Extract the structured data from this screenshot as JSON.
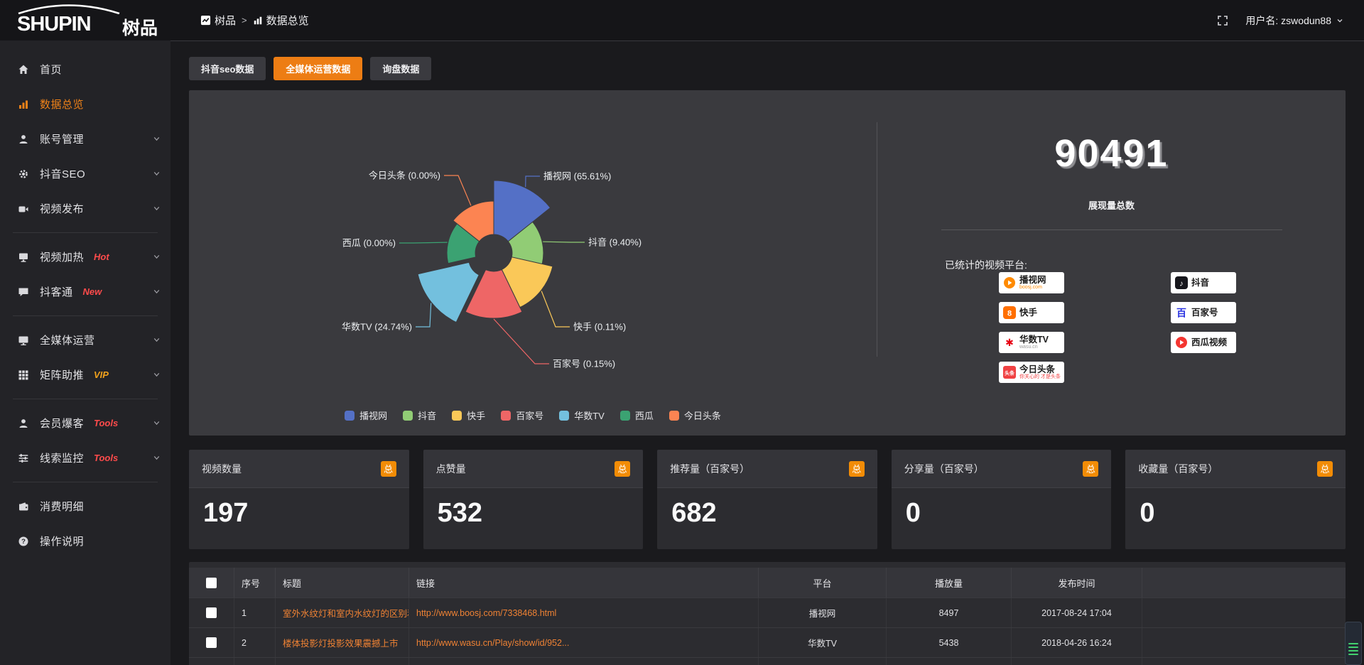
{
  "topbar": {
    "logo_en": "SHUPIN",
    "logo_cn": "树品",
    "breadcrumb": {
      "root": "树品",
      "separator": ">",
      "current": "数据总览"
    },
    "username": "用户名: zswodun88"
  },
  "sidebar": {
    "groups": [
      {
        "items": [
          {
            "key": "home",
            "label": "首页",
            "icon": "home"
          },
          {
            "key": "data-overview",
            "label": "数据总览",
            "icon": "bar-chart",
            "active": true
          },
          {
            "key": "account-mgmt",
            "label": "账号管理",
            "icon": "user",
            "chevron": true
          },
          {
            "key": "douyin-seo",
            "label": "抖音SEO",
            "icon": "gear",
            "chevron": true
          },
          {
            "key": "video-publish",
            "label": "视频发布",
            "icon": "video",
            "chevron": true
          }
        ]
      },
      {
        "items": [
          {
            "key": "video-heat",
            "label": "视频加热",
            "icon": "screen",
            "tag": "Hot",
            "tag_color": "#ff4b4b",
            "chevron": true
          },
          {
            "key": "douketong",
            "label": "抖客通",
            "icon": "chat",
            "tag": "New",
            "tag_color": "#ff4b4b",
            "chevron": true
          }
        ]
      },
      {
        "items": [
          {
            "key": "media-ops",
            "label": "全媒体运营",
            "icon": "monitor",
            "chevron": true
          },
          {
            "key": "matrix-boost",
            "label": "矩阵助推",
            "icon": "grid",
            "tag": "VIP",
            "tag_color": "#f0a11c",
            "chevron": true
          }
        ]
      },
      {
        "items": [
          {
            "key": "member-burst",
            "label": "会员爆客",
            "icon": "user",
            "tag": "Tools",
            "tag_color": "#ff4b4b",
            "chevron": true
          },
          {
            "key": "clue-monitor",
            "label": "线索监控",
            "icon": "sliders",
            "tag": "Tools",
            "tag_color": "#ff4b4b",
            "chevron": true
          }
        ]
      },
      {
        "items": [
          {
            "key": "expense-detail",
            "label": "消费明细",
            "icon": "wallet"
          },
          {
            "key": "help",
            "label": "操作说明",
            "icon": "question"
          }
        ]
      }
    ]
  },
  "tabs": [
    {
      "key": "douyin-seo-data",
      "label": "抖音seo数据"
    },
    {
      "key": "media-ops-data",
      "label": "全媒体运营数据",
      "active": true
    },
    {
      "key": "inquiry-data",
      "label": "询盘数据"
    }
  ],
  "chart_data": {
    "type": "pie",
    "variant": "nightingale-rose",
    "legend_position": "bottom",
    "items": [
      {
        "name": "播视网",
        "percent": 65.61,
        "percent_label": "65.61%",
        "color": "#5470c6"
      },
      {
        "name": "抖音",
        "percent": 9.4,
        "percent_label": "9.40%",
        "color": "#91cc75"
      },
      {
        "name": "快手",
        "percent": 0.11,
        "percent_label": "0.11%",
        "color": "#fac858"
      },
      {
        "name": "百家号",
        "percent": 0.15,
        "percent_label": "0.15%",
        "color": "#ee6666"
      },
      {
        "name": "华数TV",
        "percent": 24.74,
        "percent_label": "24.74%",
        "color": "#73c0de"
      },
      {
        "name": "西瓜",
        "percent": 0.0,
        "percent_label": "0.00%",
        "color": "#3ba272"
      },
      {
        "name": "今日头条",
        "percent": 0.0,
        "percent_label": "0.00%",
        "color": "#fc8452"
      }
    ]
  },
  "summary": {
    "total_value": "90491",
    "total_label": "展现量总数",
    "platforms_title": "已统计的视频平台:",
    "platform_badges_left": [
      {
        "key": "boosj",
        "name": "播视网",
        "sub": "boosj.com"
      },
      {
        "key": "kuaishou",
        "name": "快手",
        "sub": ""
      },
      {
        "key": "wasu",
        "name": "华数TV",
        "sub": "wasu.cn"
      },
      {
        "key": "toutiao",
        "name": "今日头条",
        "sub": "你关心的 才是头条"
      }
    ],
    "platform_badges_right": [
      {
        "key": "douyin",
        "name": "抖音",
        "sub": ""
      },
      {
        "key": "baijiahao",
        "name": "百家号",
        "sub": ""
      },
      {
        "key": "xigua",
        "name": "西瓜视频",
        "sub": ""
      }
    ]
  },
  "stat_cards": [
    {
      "title": "视频数量",
      "badge": "总",
      "value": "197"
    },
    {
      "title": "点赞量",
      "badge": "总",
      "value": "532"
    },
    {
      "title": "推荐量（百家号）",
      "badge": "总",
      "value": "682"
    },
    {
      "title": "分享量（百家号）",
      "badge": "总",
      "value": "0"
    },
    {
      "title": "收藏量（百家号）",
      "badge": "总",
      "value": "0"
    }
  ],
  "table": {
    "columns": [
      "",
      "序号",
      "标题",
      "链接",
      "平台",
      "播放量",
      "发布时间",
      ""
    ],
    "rows": [
      {
        "index": "1",
        "title": "室外水纹灯和室内水纹灯的区别和简介",
        "link": "http://www.boosj.com/7338468.html",
        "platform": "播视网",
        "plays": "8497",
        "published": "2017-08-24 17:04"
      },
      {
        "index": "2",
        "title": "楼体投影灯投影效果震撼上市",
        "link": "http://www.wasu.cn/Play/show/id/952...",
        "platform": "华数TV",
        "plays": "5438",
        "published": "2018-04-26 16:24"
      }
    ]
  },
  "colors": {
    "accent_orange": "#ed7d14",
    "badge_orange": "#f28c06",
    "link_orange": "#ef8234"
  }
}
